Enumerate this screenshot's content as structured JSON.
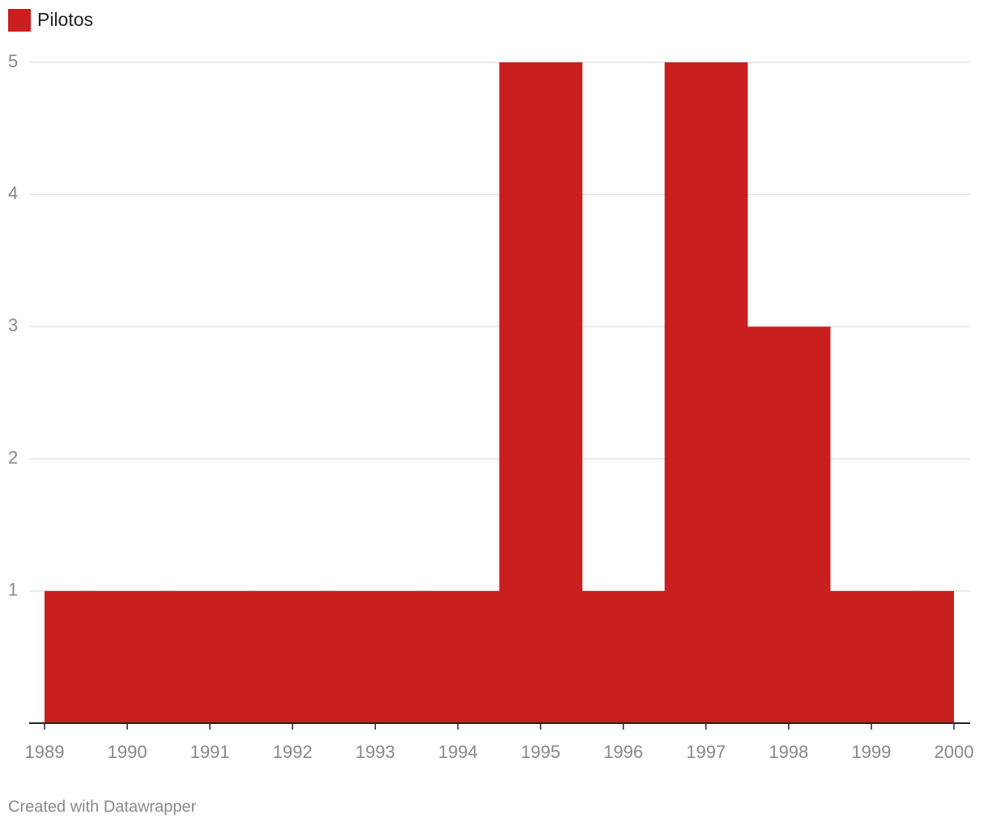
{
  "chart_data": {
    "type": "area",
    "interpolation": "step-center",
    "x": [
      1989,
      1990,
      1991,
      1992,
      1993,
      1994,
      1995,
      1996,
      1997,
      1998,
      1999,
      2000
    ],
    "series": [
      {
        "name": "Pilotos",
        "color": "#c91f1f",
        "values": [
          1,
          1,
          1,
          1,
          1,
          1,
          5,
          1,
          5,
          3,
          1,
          1
        ]
      }
    ],
    "xlim": [
      1989,
      2000
    ],
    "xticks": [
      1989,
      1990,
      1991,
      1992,
      1993,
      1994,
      1995,
      1996,
      1997,
      1998,
      1999,
      2000
    ],
    "ylim": [
      0,
      5
    ],
    "yticks": [
      1,
      2,
      3,
      4,
      5
    ],
    "grid": true,
    "legend": "top-left",
    "credit": "Created with Datawrapper"
  }
}
